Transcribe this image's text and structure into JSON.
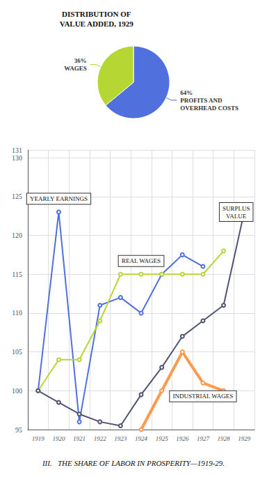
{
  "chart_data": [
    {
      "type": "line",
      "title": "III.   THE SHARE OF LABOR IN PROSPERITY—1919-29.",
      "categories": [
        1919,
        1920,
        1921,
        1922,
        1923,
        1924,
        1925,
        1926,
        1927,
        1928,
        1929
      ],
      "series": [
        {
          "name": "YEARLY EARNINGS",
          "values": [
            100,
            123,
            96,
            111,
            112,
            110,
            115,
            117.5,
            116,
            null,
            null
          ]
        },
        {
          "name": "REAL WAGES",
          "values": [
            100,
            104,
            104,
            109,
            115,
            115,
            115,
            115,
            115,
            118,
            null
          ]
        },
        {
          "name": "SURPLUS\nVALUE",
          "values": [
            100,
            98.5,
            97,
            96,
            95.5,
            99.5,
            103,
            107,
            109,
            111,
            123
          ]
        },
        {
          "name": "INDUSTRIAL WAGES",
          "values": [
            null,
            null,
            null,
            null,
            null,
            95,
            100,
            105,
            101,
            100,
            null
          ]
        }
      ],
      "ylim": [
        95,
        131
      ],
      "yticks": [
        95,
        100,
        105,
        110,
        115,
        120,
        125,
        130
      ],
      "grid": true
    },
    {
      "type": "pie",
      "title": "DISTRIBUTION OF\nVALUE ADDED, 1929",
      "categories": [
        "PROFITS AND\nOVERHEAD COSTS",
        "WAGES"
      ],
      "values": [
        64,
        36
      ],
      "value_labels": [
        "64%",
        "36%"
      ]
    }
  ]
}
